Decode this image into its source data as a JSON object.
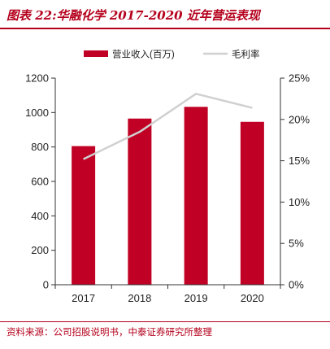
{
  "figure": {
    "title": "图表 22:华融化学 2017-2020 近年营运表现",
    "source": "资料来源：公司招股说明书，中泰证券研究所整理"
  },
  "colors": {
    "bar": "#c00024",
    "line": "#d0d0d0",
    "accent": "#b5001c",
    "axis": "#333333"
  },
  "chart_data": {
    "type": "bar",
    "categories": [
      "2017",
      "2018",
      "2019",
      "2020"
    ],
    "series": [
      {
        "name": "营业收入(百万)",
        "type": "bar",
        "axis": "left",
        "values": [
          805,
          965,
          1033,
          946
        ]
      },
      {
        "name": "毛利率",
        "type": "line",
        "axis": "right",
        "values": [
          15.2,
          18.5,
          23.1,
          21.4
        ]
      }
    ],
    "y_left": {
      "ylim": [
        0,
        1200
      ],
      "ticks": [
        "0",
        "200",
        "400",
        "600",
        "800",
        "1000",
        "1200"
      ]
    },
    "y_right": {
      "ylim": [
        0,
        25
      ],
      "ticks": [
        "0%",
        "5%",
        "10%",
        "15%",
        "20%",
        "25%"
      ]
    },
    "legend": "top-center",
    "grid": false
  }
}
